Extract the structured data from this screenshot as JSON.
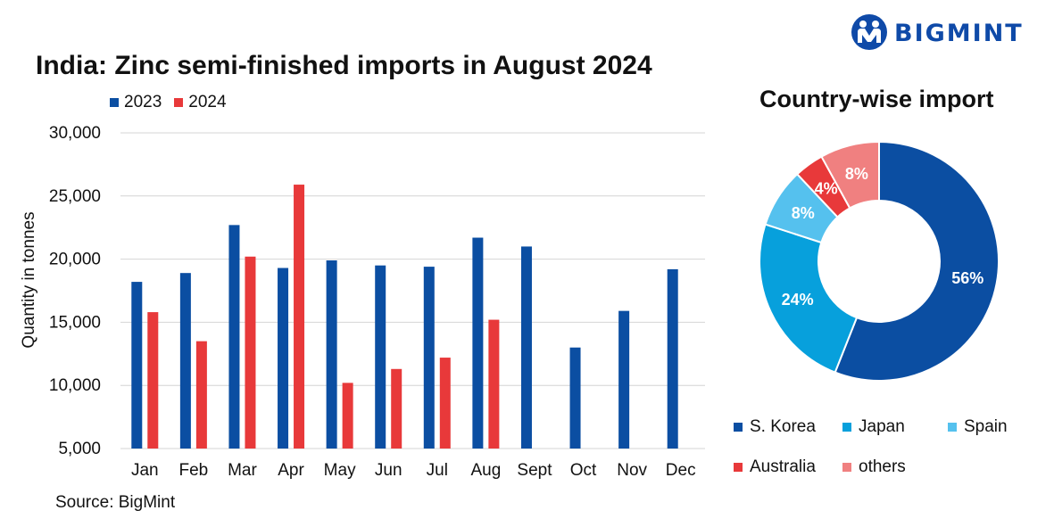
{
  "brand": {
    "name": "BIGMINT",
    "color": "#0f4aa8"
  },
  "source": "Source: BigMint",
  "chart_data": [
    {
      "type": "bar",
      "title": "India: Zinc semi-finished imports in August 2024",
      "xlabel": "",
      "ylabel": "Quantity in tonnes",
      "ylim": [
        5000,
        30000
      ],
      "yticks": [
        "30,000",
        "25,000",
        "20,000",
        "15,000",
        "10,000",
        "5,000"
      ],
      "ytick_values": [
        30000,
        25000,
        20000,
        15000,
        10000,
        5000
      ],
      "grid": true,
      "legend_position": "top-left",
      "categories": [
        "Jan",
        "Feb",
        "Mar",
        "Apr",
        "May",
        "Jun",
        "Jul",
        "Aug",
        "Sept",
        "Oct",
        "Nov",
        "Dec"
      ],
      "series": [
        {
          "name": "2023",
          "color": "#0b4ea2",
          "values": [
            18200,
            18900,
            22700,
            19300,
            19900,
            19500,
            19400,
            21700,
            21000,
            13000,
            15900,
            19200
          ]
        },
        {
          "name": "2024",
          "color": "#e8393a",
          "values": [
            15800,
            13500,
            20200,
            25900,
            10200,
            11300,
            12200,
            15200,
            null,
            null,
            null,
            null
          ]
        }
      ]
    },
    {
      "type": "pie",
      "title": "Country-wise import",
      "donut": true,
      "legend_position": "bottom",
      "slices": [
        {
          "label": "S. Korea",
          "value": 56,
          "display": "56%",
          "color": "#0b4ea2"
        },
        {
          "label": "Japan",
          "value": 24,
          "display": "24%",
          "color": "#07a0dc"
        },
        {
          "label": "Spain",
          "value": 8,
          "display": "8%",
          "color": "#55c1ee"
        },
        {
          "label": "Australia",
          "value": 4,
          "display": "4%",
          "color": "#e8393a"
        },
        {
          "label": "others",
          "value": 8,
          "display": "8%",
          "color": "#f08080"
        }
      ]
    }
  ]
}
